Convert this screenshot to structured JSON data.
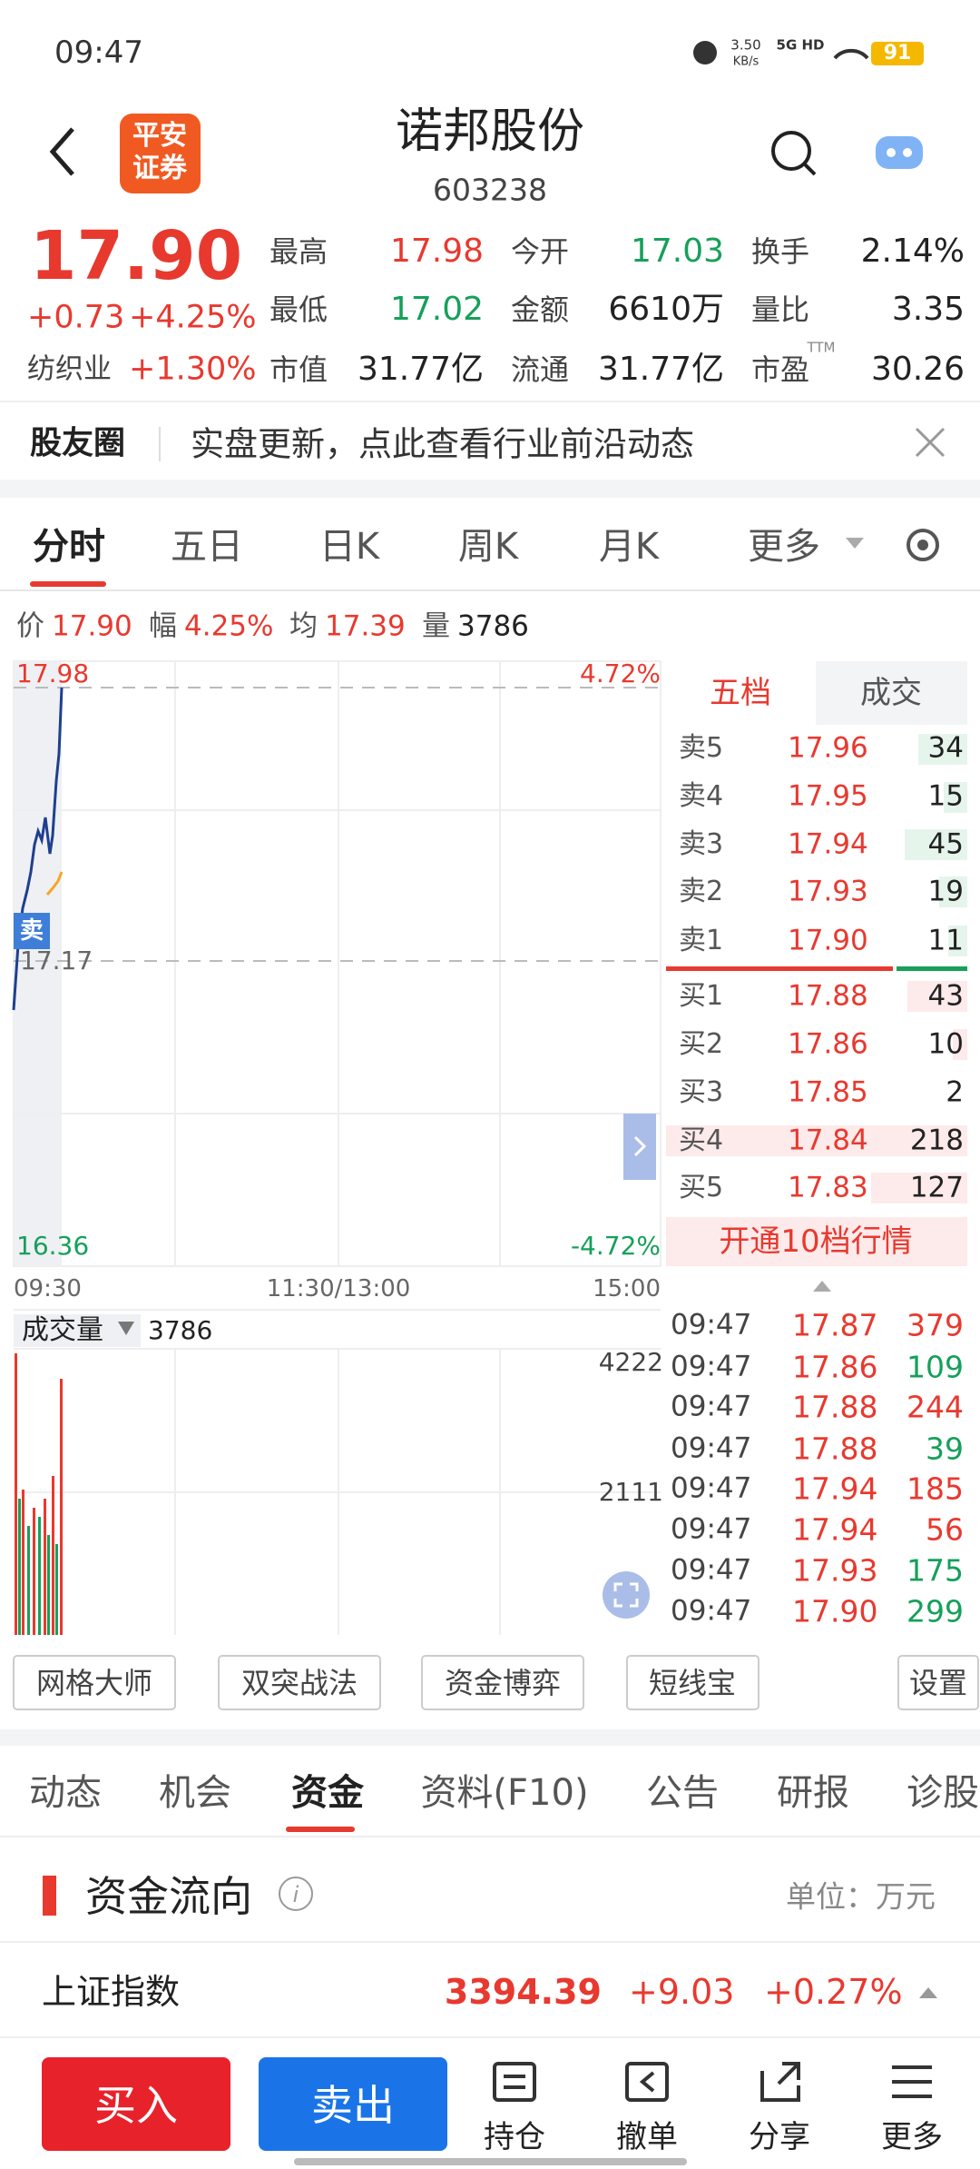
{
  "status_bar": {
    "time": "09:47",
    "speed": "3.50",
    "speed_unit": "KB/s",
    "network": "5G HD",
    "battery": "91"
  },
  "header": {
    "logo_lines": [
      "平安",
      "证券"
    ],
    "name": "诺邦股份",
    "code": "603238"
  },
  "quote": {
    "price": "17.90",
    "change": "+0.73",
    "change_pct": "+4.25%",
    "sector": "纺织业",
    "sector_pct": "+1.30%",
    "ttm": "TTM",
    "stats": [
      [
        {
          "label": "最高",
          "value": "17.98",
          "color": "red"
        },
        {
          "label": "今开",
          "value": "17.03",
          "color": "green"
        },
        {
          "label": "换手",
          "value": "2.14%",
          "color": "black"
        }
      ],
      [
        {
          "label": "最低",
          "value": "17.02",
          "color": "green"
        },
        {
          "label": "金额",
          "value": "6610万",
          "color": "black"
        },
        {
          "label": "量比",
          "value": "3.35",
          "color": "black"
        }
      ],
      [
        {
          "label": "市值",
          "value": "31.77亿",
          "color": "black"
        },
        {
          "label": "流通",
          "value": "31.77亿",
          "color": "black"
        },
        {
          "label": "市盈",
          "value": "30.26",
          "color": "black"
        }
      ]
    ]
  },
  "news": {
    "label": "股友圈",
    "text": "实盘更新，点此查看行业前沿动态"
  },
  "tabs": [
    "分时",
    "五日",
    "日K",
    "周K",
    "月K",
    "更多"
  ],
  "info_bar": [
    {
      "label": "价",
      "value": "17.90"
    },
    {
      "label": "幅",
      "value": "4.25%"
    },
    {
      "label": "均",
      "value": "17.39"
    },
    {
      "label": "量",
      "value": "3786"
    }
  ],
  "chart": {
    "high": "17.98",
    "high_pct": "4.72%",
    "mid": "17.17",
    "low": "16.36",
    "low_pct": "-4.72%",
    "sell_tag": "卖",
    "times": [
      "09:30",
      "11:30/13:00",
      "15:00"
    ],
    "vol_label": "成交量",
    "vol_value": "3786",
    "vol_ticks": [
      "4222",
      "2111"
    ]
  },
  "order_book": {
    "tabs": [
      "五档",
      "成交"
    ],
    "asks": [
      [
        "卖5",
        "17.96",
        "34"
      ],
      [
        "卖4",
        "17.95",
        "15"
      ],
      [
        "卖3",
        "17.94",
        "45"
      ],
      [
        "卖2",
        "17.93",
        "19"
      ],
      [
        "卖1",
        "17.90",
        "11"
      ]
    ],
    "bids": [
      [
        "买1",
        "17.88",
        "43"
      ],
      [
        "买2",
        "17.86",
        "10"
      ],
      [
        "买3",
        "17.85",
        "2"
      ],
      [
        "买4",
        "17.84",
        "218"
      ],
      [
        "买5",
        "17.83",
        "127"
      ]
    ],
    "upgrade": "开通10档行情"
  },
  "trades": [
    {
      "time": "09:47",
      "price": "17.87",
      "volume": "379",
      "color": "red"
    },
    {
      "time": "09:47",
      "price": "17.86",
      "volume": "109",
      "color": "green"
    },
    {
      "time": "09:47",
      "price": "17.88",
      "volume": "244",
      "color": "red"
    },
    {
      "time": "09:47",
      "price": "17.88",
      "volume": "39",
      "color": "green"
    },
    {
      "time": "09:47",
      "price": "17.94",
      "volume": "185",
      "color": "red"
    },
    {
      "time": "09:47",
      "price": "17.94",
      "volume": "56",
      "color": "red"
    },
    {
      "time": "09:47",
      "price": "17.93",
      "volume": "175",
      "color": "green"
    },
    {
      "time": "09:47",
      "price": "17.90",
      "volume": "299",
      "color": "green"
    }
  ],
  "tools": [
    "网格大师",
    "双突战法",
    "资金博弈",
    "短线宝",
    "设置"
  ],
  "sections": [
    "动态",
    "机会",
    "资金",
    "资料(F10)",
    "公告",
    "研报",
    "诊股"
  ],
  "fund_flow": {
    "title": "资金流向",
    "unit": "单位：万元"
  },
  "index": {
    "name": "上证指数",
    "value": "3394.39",
    "change": "+9.03",
    "pct": "+0.27%"
  },
  "bottom": {
    "buy": "买入",
    "sell": "卖出",
    "actions": [
      "持仓",
      "撤单",
      "分享",
      "更多"
    ]
  }
}
